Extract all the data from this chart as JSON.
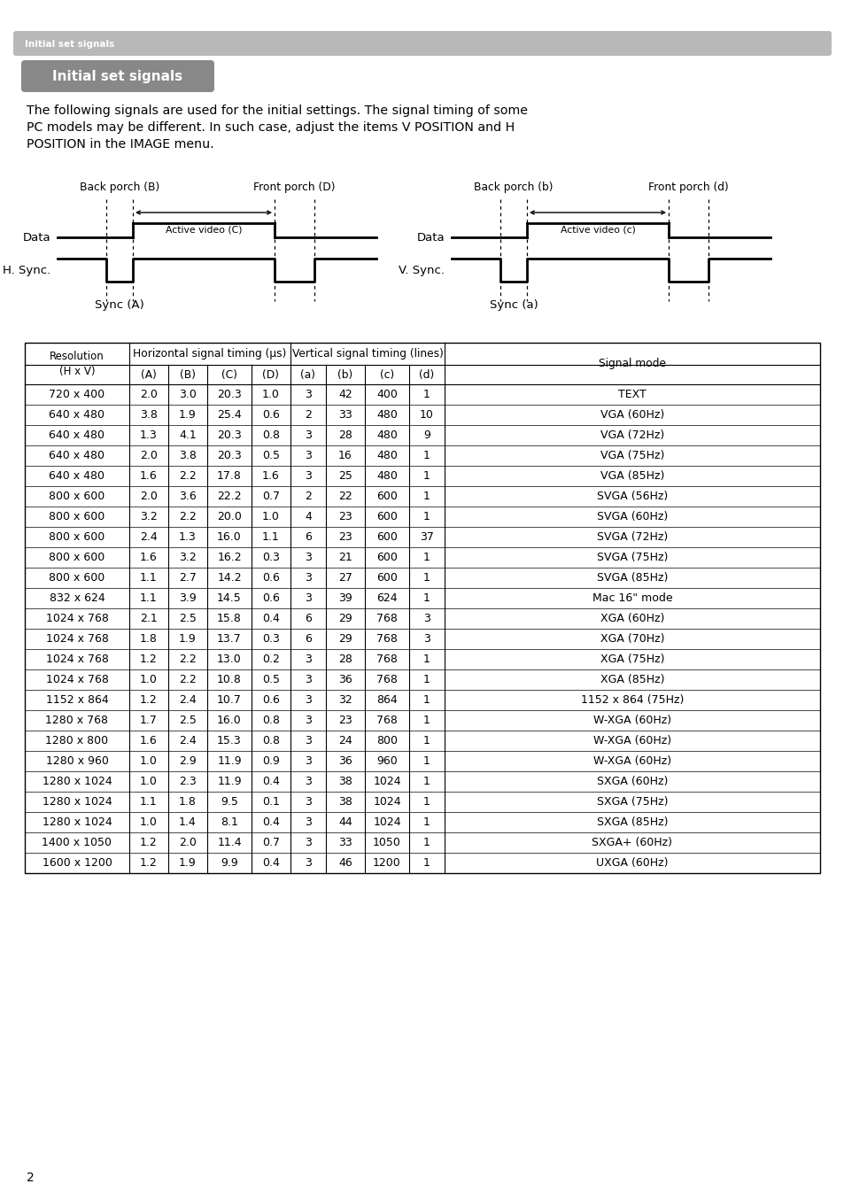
{
  "page_header_text": "Initial set signals",
  "section_title": "Initial set signals",
  "body_lines": [
    "The following signals are used for the initial settings. The signal timing of some",
    "PC models may be different. In such case, adjust the items V POSITION and H",
    "POSITION in the IMAGE menu."
  ],
  "page_number": "2",
  "table_data": [
    [
      "720 x 400",
      "2.0",
      "3.0",
      "20.3",
      "1.0",
      "3",
      "42",
      "400",
      "1",
      "TEXT"
    ],
    [
      "640 x 480",
      "3.8",
      "1.9",
      "25.4",
      "0.6",
      "2",
      "33",
      "480",
      "10",
      "VGA (60Hz)"
    ],
    [
      "640 x 480",
      "1.3",
      "4.1",
      "20.3",
      "0.8",
      "3",
      "28",
      "480",
      "9",
      "VGA (72Hz)"
    ],
    [
      "640 x 480",
      "2.0",
      "3.8",
      "20.3",
      "0.5",
      "3",
      "16",
      "480",
      "1",
      "VGA (75Hz)"
    ],
    [
      "640 x 480",
      "1.6",
      "2.2",
      "17.8",
      "1.6",
      "3",
      "25",
      "480",
      "1",
      "VGA (85Hz)"
    ],
    [
      "800 x 600",
      "2.0",
      "3.6",
      "22.2",
      "0.7",
      "2",
      "22",
      "600",
      "1",
      "SVGA (56Hz)"
    ],
    [
      "800 x 600",
      "3.2",
      "2.2",
      "20.0",
      "1.0",
      "4",
      "23",
      "600",
      "1",
      "SVGA (60Hz)"
    ],
    [
      "800 x 600",
      "2.4",
      "1.3",
      "16.0",
      "1.1",
      "6",
      "23",
      "600",
      "37",
      "SVGA (72Hz)"
    ],
    [
      "800 x 600",
      "1.6",
      "3.2",
      "16.2",
      "0.3",
      "3",
      "21",
      "600",
      "1",
      "SVGA (75Hz)"
    ],
    [
      "800 x 600",
      "1.1",
      "2.7",
      "14.2",
      "0.6",
      "3",
      "27",
      "600",
      "1",
      "SVGA (85Hz)"
    ],
    [
      "832 x 624",
      "1.1",
      "3.9",
      "14.5",
      "0.6",
      "3",
      "39",
      "624",
      "1",
      "Mac 16\" mode"
    ],
    [
      "1024 x 768",
      "2.1",
      "2.5",
      "15.8",
      "0.4",
      "6",
      "29",
      "768",
      "3",
      "XGA (60Hz)"
    ],
    [
      "1024 x 768",
      "1.8",
      "1.9",
      "13.7",
      "0.3",
      "6",
      "29",
      "768",
      "3",
      "XGA (70Hz)"
    ],
    [
      "1024 x 768",
      "1.2",
      "2.2",
      "13.0",
      "0.2",
      "3",
      "28",
      "768",
      "1",
      "XGA (75Hz)"
    ],
    [
      "1024 x 768",
      "1.0",
      "2.2",
      "10.8",
      "0.5",
      "3",
      "36",
      "768",
      "1",
      "XGA (85Hz)"
    ],
    [
      "1152 x 864",
      "1.2",
      "2.4",
      "10.7",
      "0.6",
      "3",
      "32",
      "864",
      "1",
      "1152 x 864 (75Hz)"
    ],
    [
      "1280 x 768",
      "1.7",
      "2.5",
      "16.0",
      "0.8",
      "3",
      "23",
      "768",
      "1",
      "W-XGA (60Hz)"
    ],
    [
      "1280 x 800",
      "1.6",
      "2.4",
      "15.3",
      "0.8",
      "3",
      "24",
      "800",
      "1",
      "W-XGA (60Hz)"
    ],
    [
      "1280 x 960",
      "1.0",
      "2.9",
      "11.9",
      "0.9",
      "3",
      "36",
      "960",
      "1",
      "W-XGA (60Hz)"
    ],
    [
      "1280 x 1024",
      "1.0",
      "2.3",
      "11.9",
      "0.4",
      "3",
      "38",
      "1024",
      "1",
      "SXGA (60Hz)"
    ],
    [
      "1280 x 1024",
      "1.1",
      "1.8",
      "9.5",
      "0.1",
      "3",
      "38",
      "1024",
      "1",
      "SXGA (75Hz)"
    ],
    [
      "1280 x 1024",
      "1.0",
      "1.4",
      "8.1",
      "0.4",
      "3",
      "44",
      "1024",
      "1",
      "SXGA (85Hz)"
    ],
    [
      "1400 x 1050",
      "1.2",
      "2.0",
      "11.4",
      "0.7",
      "3",
      "33",
      "1050",
      "1",
      "SXGA+ (60Hz)"
    ],
    [
      "1600 x 1200",
      "1.2",
      "1.9",
      "9.9",
      "0.4",
      "3",
      "46",
      "1200",
      "1",
      "UXGA (60Hz)"
    ]
  ],
  "bg_color": "#ffffff",
  "header_bar_color": "#b8b8b8",
  "section_title_bg": "#888888",
  "text_color": "#000000",
  "diagram_lw": 2.0,
  "diagram_dash_lw": 0.9
}
